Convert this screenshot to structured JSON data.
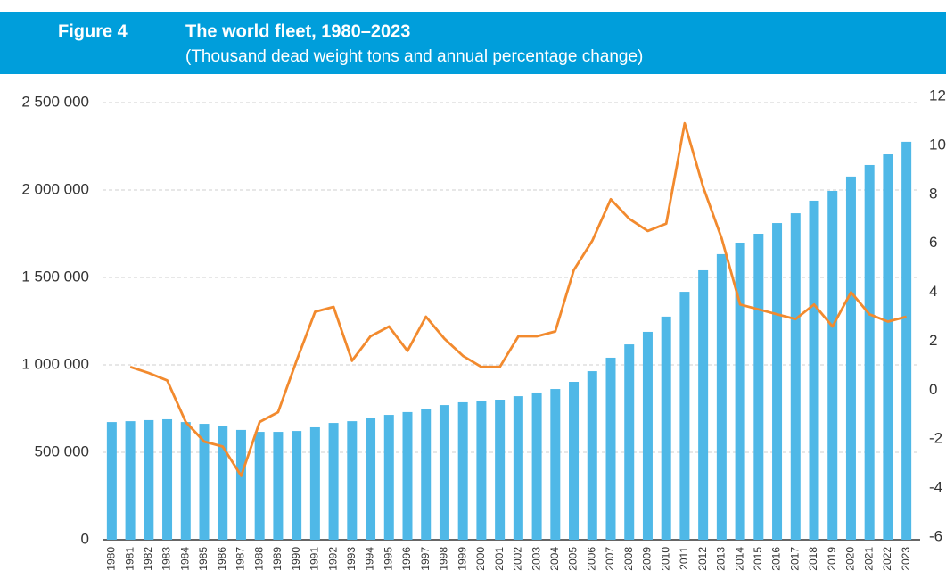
{
  "chart_data": {
    "type": "bar",
    "figure_label": "Figure 4",
    "title": "The world fleet, 1980–2023",
    "subtitle": "(Thousand dead weight tons and annual percentage change)",
    "categories": [
      "1980",
      "1981",
      "1982",
      "1983",
      "1984",
      "1985",
      "1986",
      "1987",
      "1988",
      "1989",
      "1990",
      "1991",
      "1992",
      "1993",
      "1994",
      "1995",
      "1996",
      "1997",
      "1998",
      "1999",
      "2000",
      "2001",
      "2002",
      "2003",
      "2004",
      "2005",
      "2006",
      "2007",
      "2008",
      "2009",
      "2010",
      "2011",
      "2012",
      "2013",
      "2014",
      "2015",
      "2016",
      "2017",
      "2018",
      "2019",
      "2020",
      "2021",
      "2022",
      "2023"
    ],
    "series": [
      {
        "type": "bar",
        "color": "#4fb8e7",
        "values": [
          673000,
          678000,
          684000,
          689000,
          673000,
          663000,
          648000,
          628000,
          617000,
          617000,
          622000,
          643000,
          668000,
          678000,
          699000,
          714000,
          730000,
          750000,
          770000,
          786000,
          791000,
          801000,
          821000,
          842000,
          862000,
          903000,
          964000,
          1041000,
          1117000,
          1189000,
          1276000,
          1418000,
          1541000,
          1633000,
          1699000,
          1750000,
          1811000,
          1867000,
          1939000,
          1995000,
          2077000,
          2143000,
          2204000,
          2276000
        ]
      },
      {
        "type": "line",
        "axis": "y2",
        "color": "#f28a2e",
        "values": [
          null,
          0.95,
          0.7,
          0.4,
          -1.3,
          -2.1,
          -2.3,
          -3.5,
          -1.3,
          -0.9,
          1.2,
          3.2,
          3.4,
          1.2,
          2.2,
          2.6,
          1.6,
          3.0,
          2.1,
          1.4,
          0.95,
          0.95,
          2.2,
          2.2,
          2.4,
          4.9,
          6.1,
          7.8,
          7.0,
          6.5,
          6.8,
          10.9,
          8.3,
          6.2,
          3.5,
          3.3,
          3.1,
          2.9,
          3.5,
          2.6,
          4.0,
          3.1,
          2.8,
          3.0
        ]
      }
    ],
    "ylim": [
      0,
      2500000
    ],
    "yticks": [
      0,
      {
        "value": 500000,
        "label": "500 000"
      },
      {
        "value": 1000000,
        "label": "1 000 000"
      },
      {
        "value": 1500000,
        "label": "1 500 000"
      },
      {
        "value": 2000000,
        "label": "2 000 000"
      },
      {
        "value": 2500000,
        "label": "2 500 000"
      }
    ],
    "y2lim": [
      -6,
      12
    ],
    "y2ticks": [
      -6,
      -4,
      -2,
      0,
      2,
      4,
      6,
      8,
      10,
      12
    ],
    "grid": true
  }
}
